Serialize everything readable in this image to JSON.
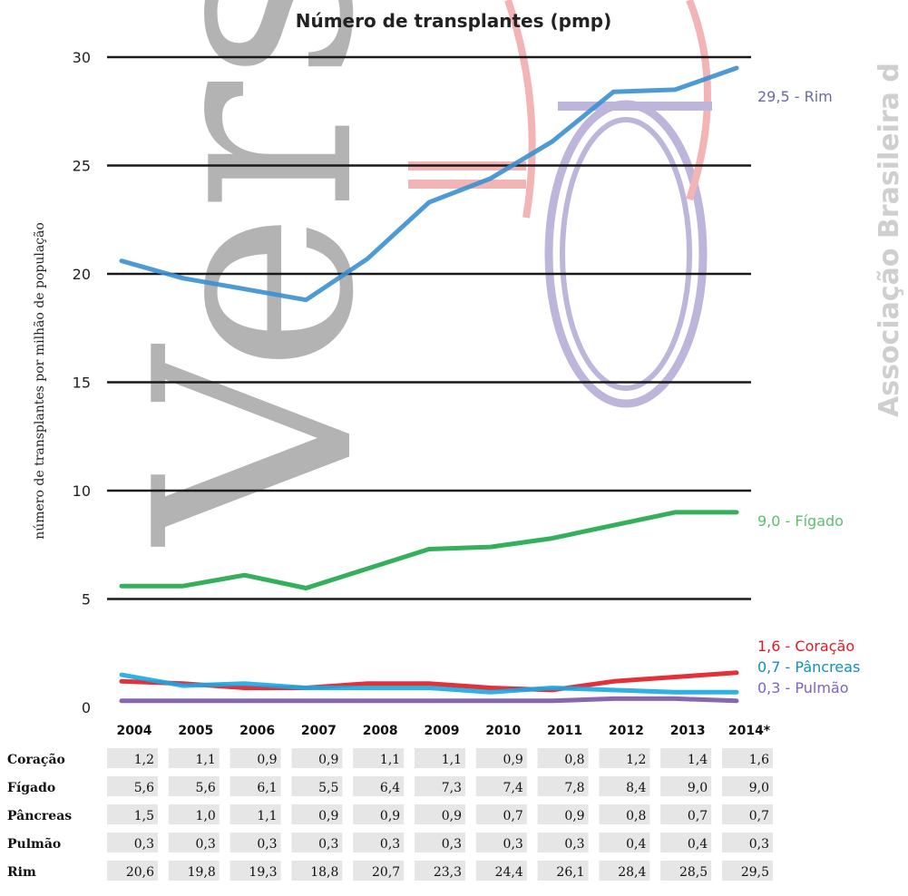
{
  "chart_data": {
    "type": "line",
    "title": "Número de transplantes (pmp)",
    "ylabel": "número de transplantes por milhão de população",
    "xlabel": "",
    "ylim": [
      0,
      30
    ],
    "y_ticks": [
      "0",
      "5",
      "10",
      "15",
      "20",
      "25",
      "30"
    ],
    "grid": true,
    "categories": [
      "2004",
      "2005",
      "2006",
      "2007",
      "2008",
      "2009",
      "2010",
      "2011",
      "2012",
      "2013",
      "2014*"
    ],
    "series": [
      {
        "name": "Rim",
        "color": "#3b8fd0",
        "values": [
          20.6,
          19.8,
          19.3,
          18.8,
          20.7,
          23.3,
          24.4,
          26.1,
          28.4,
          28.5,
          29.5
        ],
        "end_label": "29,5 - Rim",
        "end_label_color": "#6a6aa8"
      },
      {
        "name": "Fígado",
        "color": "#1ea64a",
        "values": [
          5.6,
          5.6,
          6.1,
          5.5,
          6.4,
          7.3,
          7.4,
          7.8,
          8.4,
          9.0,
          9.0
        ],
        "end_label": "9,0 - Fígado",
        "end_label_color": "#5cbf6e"
      },
      {
        "name": "Coração",
        "color": "#e11a22",
        "values": [
          1.2,
          1.1,
          0.9,
          0.9,
          1.1,
          1.1,
          0.9,
          0.8,
          1.2,
          1.4,
          1.6
        ],
        "end_label": "1,6 - Coração",
        "end_label_color": "#e11a22"
      },
      {
        "name": "Pâncreas",
        "color": "#19a8e3",
        "values": [
          1.5,
          1.0,
          1.1,
          0.9,
          0.9,
          0.9,
          0.7,
          0.9,
          0.8,
          0.7,
          0.7
        ],
        "end_label": "0,7 - Pâncreas",
        "end_label_color": "#0f8fbf"
      },
      {
        "name": "Pulmão",
        "color": "#7b56a6",
        "values": [
          0.3,
          0.3,
          0.3,
          0.3,
          0.3,
          0.3,
          0.3,
          0.3,
          0.4,
          0.4,
          0.3
        ],
        "end_label": "0,3 - Pulmão",
        "end_label_color": "#7b63c9"
      }
    ],
    "table": {
      "rows": [
        {
          "label": "Coração",
          "cells": [
            "1,2",
            "1,1",
            "0,9",
            "0,9",
            "1,1",
            "1,1",
            "0,9",
            "0,8",
            "1,2",
            "1,4",
            "1,6"
          ]
        },
        {
          "label": "Fígado",
          "cells": [
            "5,6",
            "5,6",
            "6,1",
            "5,5",
            "6,4",
            "7,3",
            "7,4",
            "7,8",
            "8,4",
            "9,0",
            "9,0"
          ]
        },
        {
          "label": "Pâncreas",
          "cells": [
            "1,5",
            "1,0",
            "1,1",
            "0,9",
            "0,9",
            "0,9",
            "0,7",
            "0,9",
            "0,8",
            "0,7",
            "0,7"
          ]
        },
        {
          "label": "Pulmão",
          "cells": [
            "0,3",
            "0,3",
            "0,3",
            "0,3",
            "0,3",
            "0,3",
            "0,3",
            "0,3",
            "0,4",
            "0,4",
            "0,3"
          ]
        },
        {
          "label": "Rim",
          "cells": [
            "20,6",
            "19,8",
            "19,3",
            "18,8",
            "20,7",
            "23,3",
            "24,4",
            "26,1",
            "28,4",
            "28,5",
            "29,5"
          ]
        }
      ]
    }
  },
  "watermarks": {
    "main_text": "Versão",
    "side_text": "Associação Brasileira d",
    "colors": {
      "gray": "#9a9a9a",
      "red": "#f2b4b4",
      "purple": "#bdb5da"
    }
  }
}
